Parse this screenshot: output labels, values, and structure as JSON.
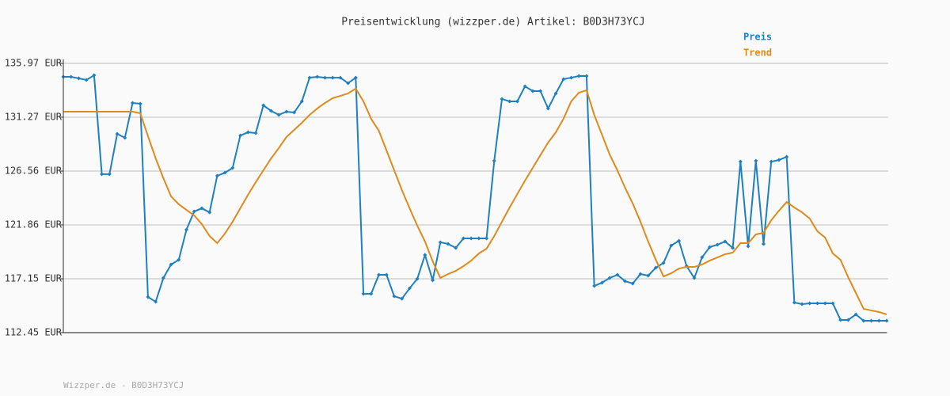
{
  "chart_data": {
    "type": "line",
    "title": "Preisentwicklung (wizzper.de) Artikel: B0D3H73YCJ",
    "footer": "Wizzper.de - B0D3H73YCJ",
    "grid": true,
    "legend": "top-right",
    "ylim": [
      112.45,
      135.97
    ],
    "yticks": [
      {
        "value": 112.45,
        "label": "112.45 EUR"
      },
      {
        "value": 117.15,
        "label": "117.15 EUR"
      },
      {
        "value": 121.86,
        "label": "121.86 EUR"
      },
      {
        "value": 126.56,
        "label": "126.56 EUR"
      },
      {
        "value": 131.27,
        "label": "131.27 EUR"
      },
      {
        "value": 135.97,
        "label": "135.97 EUR"
      }
    ],
    "categories": [
      null,
      null,
      null,
      null,
      null,
      null,
      null,
      null,
      null,
      null,
      null,
      null,
      null,
      null,
      null,
      null,
      null,
      null,
      null,
      null,
      null,
      null,
      null,
      null,
      null,
      null,
      null,
      null,
      null,
      null,
      null,
      null,
      null,
      null,
      null,
      null,
      null,
      null,
      null,
      null,
      null,
      null,
      null,
      null,
      null,
      null,
      null,
      null,
      null,
      null,
      null,
      null,
      null,
      null,
      null,
      null,
      null,
      null,
      null,
      null,
      null,
      null,
      null,
      null,
      null,
      null,
      null,
      null,
      null,
      null,
      null,
      null,
      null,
      null,
      null,
      null,
      null,
      null,
      null,
      null,
      null,
      null,
      null,
      null,
      null,
      null,
      null,
      null,
      null,
      null,
      null,
      null,
      null,
      null,
      null,
      null,
      null,
      null,
      null,
      null,
      null,
      null,
      null,
      null,
      null,
      null,
      null,
      null
    ],
    "series": [
      {
        "name": "Preis",
        "color": "#1f80c0",
        "markers": true,
        "values": [
          134.79,
          134.79,
          134.66,
          134.52,
          134.93,
          126.29,
          126.29,
          129.81,
          129.47,
          132.51,
          132.44,
          115.56,
          115.15,
          117.22,
          118.4,
          118.81,
          121.44,
          123.03,
          123.31,
          122.96,
          126.15,
          126.42,
          126.84,
          129.67,
          129.95,
          129.88,
          132.3,
          131.82,
          131.47,
          131.75,
          131.68,
          132.65,
          134.72,
          134.79,
          134.72,
          134.72,
          134.72,
          134.24,
          134.72,
          115.84,
          115.84,
          117.5,
          117.5,
          115.63,
          115.42,
          116.32,
          117.15,
          119.23,
          117.02,
          120.34,
          120.2,
          119.85,
          120.68,
          120.68,
          120.68,
          120.68,
          127.46,
          132.86,
          132.65,
          132.65,
          133.96,
          133.55,
          133.55,
          132.03,
          133.34,
          134.59,
          134.72,
          134.86,
          134.86,
          116.53,
          116.81,
          117.22,
          117.5,
          116.95,
          116.74,
          117.57,
          117.43,
          118.12,
          118.54,
          120.06,
          120.47,
          118.26,
          117.22,
          119.02,
          119.92,
          120.13,
          120.41,
          119.85,
          127.39,
          119.99,
          127.46,
          120.2,
          127.39,
          127.53,
          127.81,
          115.08,
          114.94,
          115.01,
          115.01,
          115.01,
          115.01,
          113.56,
          113.56,
          114.04,
          113.49,
          113.49,
          113.49,
          113.49
        ]
      },
      {
        "name": "Trend",
        "color": "#e08a1e",
        "markers": false,
        "values": [
          131.75,
          131.75,
          131.75,
          131.75,
          131.75,
          131.75,
          131.75,
          131.75,
          131.75,
          131.75,
          131.61,
          129.61,
          127.67,
          125.94,
          124.35,
          123.66,
          123.17,
          122.69,
          121.93,
          120.89,
          120.27,
          121.1,
          122.14,
          123.31,
          124.49,
          125.59,
          126.63,
          127.67,
          128.57,
          129.54,
          130.16,
          130.78,
          131.47,
          132.03,
          132.51,
          132.93,
          133.13,
          133.34,
          133.76,
          132.65,
          131.13,
          130.09,
          128.36,
          126.63,
          124.9,
          123.31,
          121.79,
          120.41,
          118.68,
          117.22,
          117.57,
          117.85,
          118.26,
          118.74,
          119.37,
          119.78,
          120.89,
          122.14,
          123.38,
          124.56,
          125.73,
          126.84,
          127.95,
          129.05,
          129.95,
          131.13,
          132.65,
          133.41,
          133.62,
          131.47,
          129.74,
          128.01,
          126.63,
          125.11,
          123.73,
          122.14,
          120.41,
          118.81,
          117.36,
          117.64,
          118.05,
          118.19,
          118.19,
          118.4,
          118.74,
          119.02,
          119.3,
          119.44,
          120.27,
          120.27,
          121.03,
          121.17,
          122.27,
          123.1,
          123.86,
          123.38,
          122.96,
          122.41,
          121.3,
          120.75,
          119.37,
          118.81,
          117.29,
          115.91,
          114.53,
          114.39,
          114.25,
          114.04
        ]
      }
    ]
  }
}
